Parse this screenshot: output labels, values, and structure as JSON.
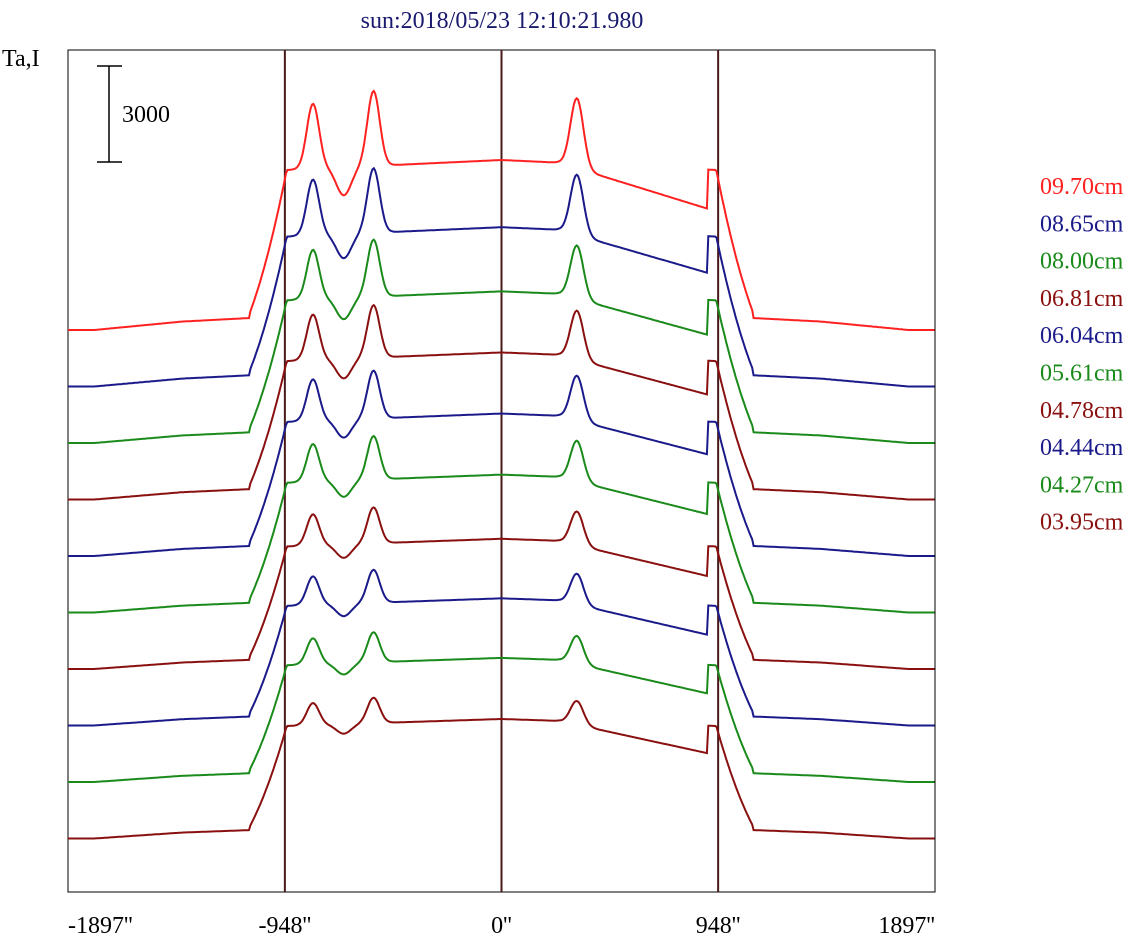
{
  "chart_data": {
    "type": "line",
    "title": "sun:2018/05/23 12:10:21.980",
    "title_color": "#1a1a6e",
    "ylabel": "Ta,I",
    "scale_bar_label": "3000",
    "xlabel": "",
    "x_ticks": [
      {
        "value": -1897,
        "label": "-1897''"
      },
      {
        "value": -948,
        "label": "-948''"
      },
      {
        "value": 0,
        "label": "0''"
      },
      {
        "value": 948,
        "label": "948''"
      },
      {
        "value": 1897,
        "label": "1897''"
      }
    ],
    "vertical_lines": [
      -948,
      0,
      948
    ],
    "vertical_line_color": "#4a1a1a",
    "xlim": [
      -1897,
      1897
    ],
    "grid": false,
    "legend_position": "right",
    "series": [
      {
        "name": "09.70cm",
        "color": "#ff2020",
        "peak_scale": 1.0,
        "step_shift": 0
      },
      {
        "name": "08.65cm",
        "color": "#1a1a8a",
        "peak_scale": 0.86,
        "step_shift": 0
      },
      {
        "name": "08.00cm",
        "color": "#1a8a1a",
        "peak_scale": 0.76,
        "step_shift": 0
      },
      {
        "name": "06.81cm",
        "color": "#8a1010",
        "peak_scale": 0.7,
        "step_shift": 0
      },
      {
        "name": "06.04cm",
        "color": "#1a1a8a",
        "peak_scale": 0.64,
        "step_shift": 0
      },
      {
        "name": "05.61cm",
        "color": "#1a8a1a",
        "peak_scale": 0.58,
        "step_shift": 0
      },
      {
        "name": "04.78cm",
        "color": "#8a1010",
        "peak_scale": 0.48,
        "step_shift": 0
      },
      {
        "name": "04.44cm",
        "color": "#1a1a8a",
        "peak_scale": 0.44,
        "step_shift": 0
      },
      {
        "name": "04.27cm",
        "color": "#1a8a1a",
        "peak_scale": 0.4,
        "step_shift": 0
      },
      {
        "name": "03.95cm",
        "color": "#8a1010",
        "peak_scale": 0.34,
        "step_shift": 0
      }
    ]
  }
}
